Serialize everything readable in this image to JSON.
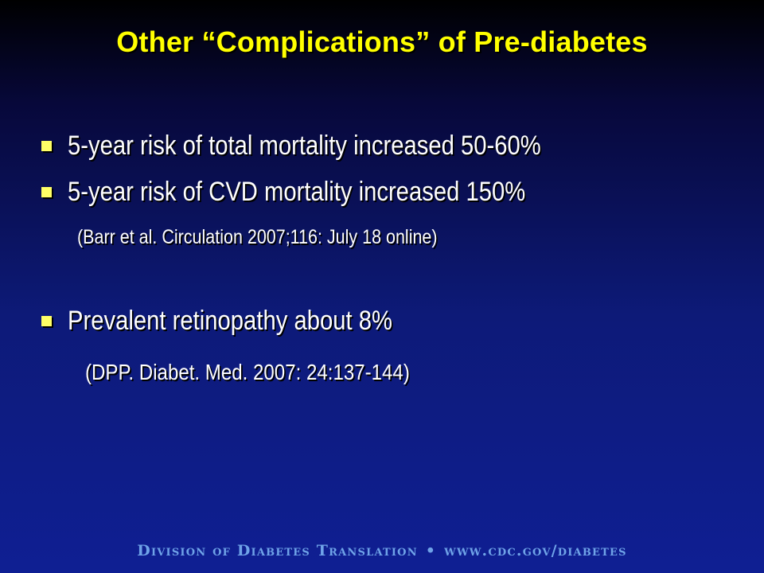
{
  "slide": {
    "title": "Other “Complications” of Pre-diabetes",
    "bullets": [
      {
        "text": "5-year risk of total mortality increased 50-60%"
      },
      {
        "text": "5-year risk of CVD mortality increased 150%"
      },
      {
        "text": "Prevalent retinopathy about 8%"
      }
    ],
    "citations": [
      "(Barr et al. Circulation 2007;116: July 18 online)",
      "(DPP. Diabet. Med. 2007: 24:137-144)"
    ]
  },
  "footer": {
    "division": "Division of Diabetes Translation",
    "separator": "•",
    "url": "www.cdc.gov/diabetes"
  },
  "colors": {
    "title": "#ffff00",
    "bullet_marker": "#ffff66",
    "body_text": "#ffffff",
    "footer_text": "#6fa3e8",
    "background_top": "#000000",
    "background_bottom": "#0f1f93"
  }
}
